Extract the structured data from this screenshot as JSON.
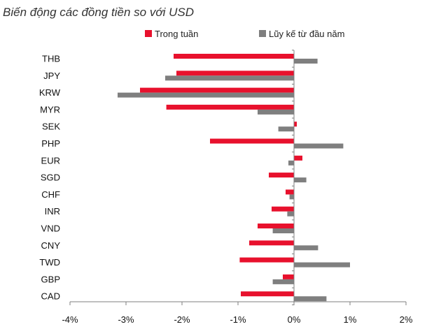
{
  "chart_data": {
    "type": "bar",
    "orientation": "horizontal",
    "title": "Biến động các đồng tiền so với USD",
    "xlabel": "",
    "ylabel": "",
    "xlim": [
      -4,
      2
    ],
    "ticks": [
      -4,
      -3,
      -2,
      -1,
      0,
      1,
      2
    ],
    "tick_labels": [
      "-4%",
      "-3%",
      "-2%",
      "-1%",
      "0%",
      "1%",
      "2%"
    ],
    "grid": false,
    "legend_position": "top-center",
    "categories": [
      "THB",
      "JPY",
      "KRW",
      "MYR",
      "SEK",
      "PHP",
      "EUR",
      "SGD",
      "CHF",
      "INR",
      "VND",
      "CNY",
      "TWD",
      "GBP",
      "CAD"
    ],
    "series": [
      {
        "name": "Trong tuần",
        "color": "#e8112d",
        "values": [
          -2.15,
          -2.1,
          -2.75,
          -2.28,
          0.05,
          -1.5,
          0.15,
          -0.45,
          -0.15,
          -0.4,
          -0.65,
          -0.8,
          -0.97,
          -0.2,
          -0.95
        ]
      },
      {
        "name": "Lũy kế từ đầu năm",
        "color": "#7f7f7f",
        "values": [
          0.42,
          -2.3,
          -3.15,
          -0.65,
          -0.28,
          0.88,
          -0.1,
          0.22,
          -0.08,
          -0.12,
          -0.38,
          0.43,
          1.0,
          -0.38,
          0.58
        ]
      }
    ]
  }
}
